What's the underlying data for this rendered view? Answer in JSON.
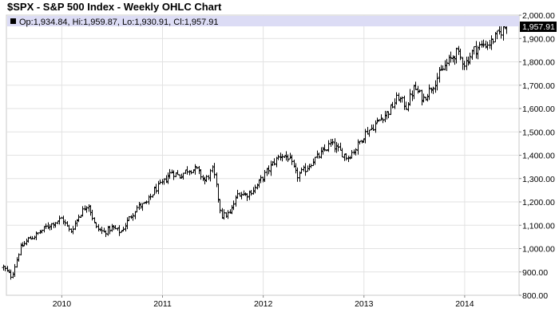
{
  "chart_data": {
    "type": "ohlc",
    "title": "$SPX - S&P 500 Index - Weekly OHLC Chart",
    "legend": {
      "text": "Op:1,934.84, Hi:1,959.87, Lo:1,930.91, Cl:1,957.91",
      "marker_color": "#000000",
      "background": "#dcdcf5"
    },
    "last_price_label": "1,957.91",
    "y_axis": {
      "ylim": [
        800,
        2000
      ],
      "ticks": [
        800,
        900,
        1000,
        1100,
        1200,
        1300,
        1400,
        1500,
        1600,
        1700,
        1800,
        1900,
        2000
      ],
      "tick_labels": [
        "800.00",
        "900.00",
        "1,000.00",
        "1,100.00",
        "1,200.00",
        "1,300.00",
        "1,400.00",
        "1,500.00",
        "1,600.00",
        "1,700.00",
        "1,800.00",
        "1,900.00",
        "2,000.00"
      ],
      "position": "right"
    },
    "x_axis": {
      "range": [
        "2009-06",
        "2014-06"
      ],
      "tick_labels": [
        "2010",
        "2011",
        "2012",
        "2013",
        "2014"
      ],
      "tick_positions": [
        2010.0,
        2011.0,
        2012.0,
        2013.0,
        2014.0
      ]
    },
    "grid": true,
    "series_color": "#000000",
    "anchors": [
      [
        "2009-06",
        920
      ],
      [
        "2009-07",
        880
      ],
      [
        "2009-08",
        1000
      ],
      [
        "2009-09",
        1040
      ],
      [
        "2009-10",
        1060
      ],
      [
        "2009-11",
        1090
      ],
      [
        "2009-12",
        1110
      ],
      [
        "2010-01",
        1130
      ],
      [
        "2010-02",
        1070
      ],
      [
        "2010-03",
        1140
      ],
      [
        "2010-04",
        1190
      ],
      [
        "2010-04",
        1205
      ],
      [
        "2010-05",
        1090
      ],
      [
        "2010-06",
        1070
      ],
      [
        "2010-07",
        1090
      ],
      [
        "2010-08",
        1070
      ],
      [
        "2010-09",
        1130
      ],
      [
        "2010-10",
        1180
      ],
      [
        "2010-11",
        1190
      ],
      [
        "2010-12",
        1250
      ],
      [
        "2011-01",
        1280
      ],
      [
        "2011-02",
        1330
      ],
      [
        "2011-03",
        1310
      ],
      [
        "2011-04",
        1340
      ],
      [
        "2011-05",
        1340
      ],
      [
        "2011-06",
        1290
      ],
      [
        "2011-07",
        1340
      ],
      [
        "2011-08",
        1140
      ],
      [
        "2011-09",
        1150
      ],
      [
        "2011-10",
        1240
      ],
      [
        "2011-11",
        1230
      ],
      [
        "2011-12",
        1260
      ],
      [
        "2012-01",
        1310
      ],
      [
        "2012-02",
        1360
      ],
      [
        "2012-03",
        1400
      ],
      [
        "2012-04",
        1390
      ],
      [
        "2012-05",
        1310
      ],
      [
        "2012-06",
        1340
      ],
      [
        "2012-07",
        1380
      ],
      [
        "2012-08",
        1410
      ],
      [
        "2012-09",
        1450
      ],
      [
        "2012-10",
        1420
      ],
      [
        "2012-11",
        1390
      ],
      [
        "2012-12",
        1430
      ],
      [
        "2013-01",
        1490
      ],
      [
        "2013-02",
        1520
      ],
      [
        "2013-03",
        1560
      ],
      [
        "2013-04",
        1590
      ],
      [
        "2013-05",
        1650
      ],
      [
        "2013-06",
        1610
      ],
      [
        "2013-07",
        1690
      ],
      [
        "2013-08",
        1640
      ],
      [
        "2013-09",
        1690
      ],
      [
        "2013-10",
        1750
      ],
      [
        "2013-11",
        1800
      ],
      [
        "2013-12",
        1840
      ],
      [
        "2014-01",
        1790
      ],
      [
        "2014-02",
        1850
      ],
      [
        "2014-03",
        1870
      ],
      [
        "2014-04",
        1880
      ],
      [
        "2014-05",
        1920
      ],
      [
        "2014-06",
        1957.91
      ]
    ]
  }
}
